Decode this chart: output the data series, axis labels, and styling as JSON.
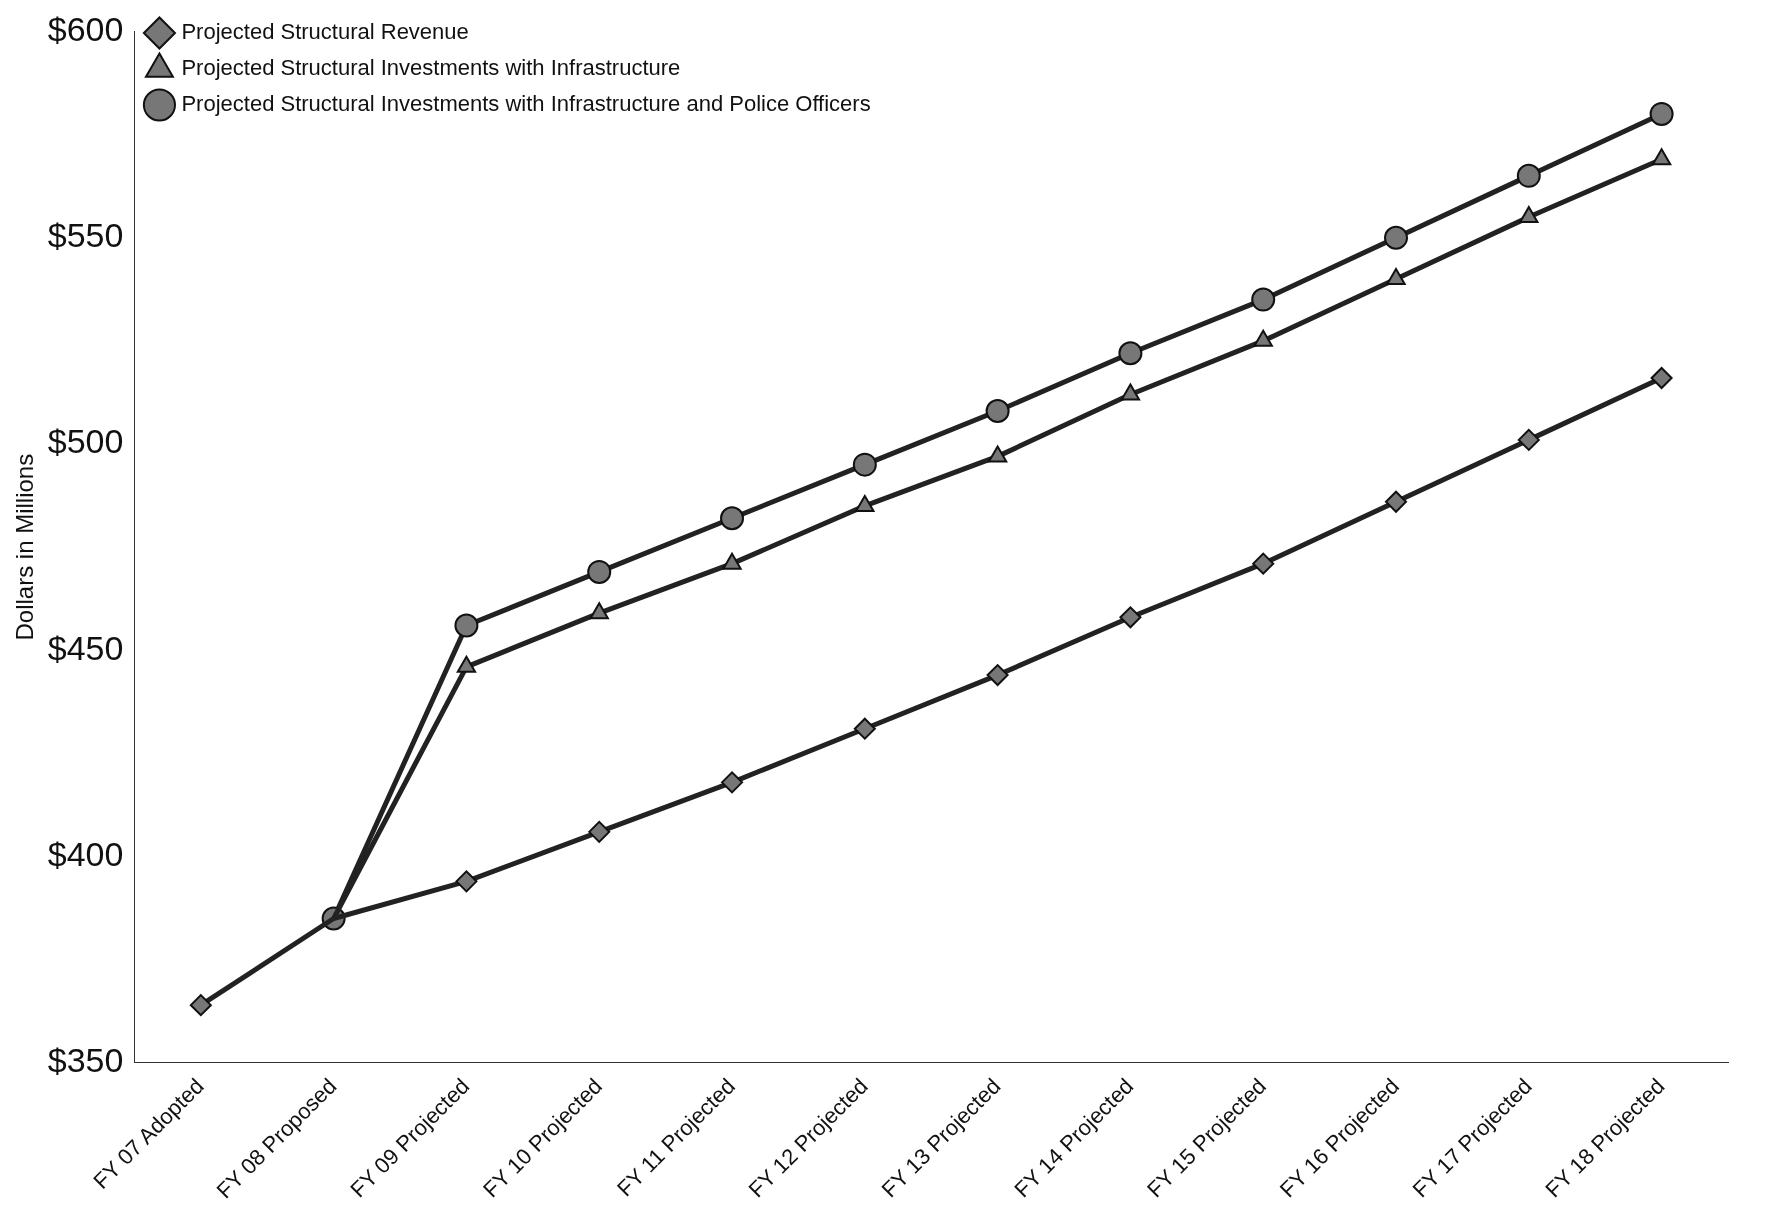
{
  "chart_data": {
    "type": "line",
    "ylabel": "Dollars in Millions",
    "categories": [
      "FY 07 Adopted",
      "FY 08 Proposed",
      "FY 09 Projected",
      "FY 10 Projected",
      "FY 11 Projected",
      "FY 12 Projected",
      "FY 13 Projected",
      "FY 14 Projected",
      "FY 15 Projected",
      "FY 16 Projected",
      "FY 17 Projected",
      "FY 18 Projected"
    ],
    "series": [
      {
        "name": "Projected Structural Revenue",
        "color": "#222222",
        "marker": "diamond",
        "values": [
          364,
          385,
          394,
          406,
          418,
          431,
          444,
          458,
          471,
          486,
          501,
          516
        ]
      },
      {
        "name": "Projected Structural Investments with Infrastructure",
        "color": "#222222",
        "marker": "triangle",
        "values": [
          null,
          385,
          446,
          459,
          471,
          485,
          497,
          512,
          525,
          540,
          555,
          569
        ]
      },
      {
        "name": "Projected Structural Investments with Infrastructure and Police Officers",
        "color": "#222222",
        "marker": "circle",
        "values": [
          null,
          385,
          456,
          469,
          482,
          495,
          508,
          522,
          535,
          550,
          565,
          580
        ]
      }
    ],
    "ylim": [
      350,
      600
    ],
    "yticks": [
      {
        "value": 350,
        "label": "$350"
      },
      {
        "value": 400,
        "label": "$400"
      },
      {
        "value": 450,
        "label": "$450"
      },
      {
        "value": 500,
        "label": "$500"
      },
      {
        "value": 550,
        "label": "$550"
      },
      {
        "value": 600,
        "label": "$600"
      }
    ],
    "grid": false,
    "legend": "top left",
    "line_style": "solid"
  }
}
